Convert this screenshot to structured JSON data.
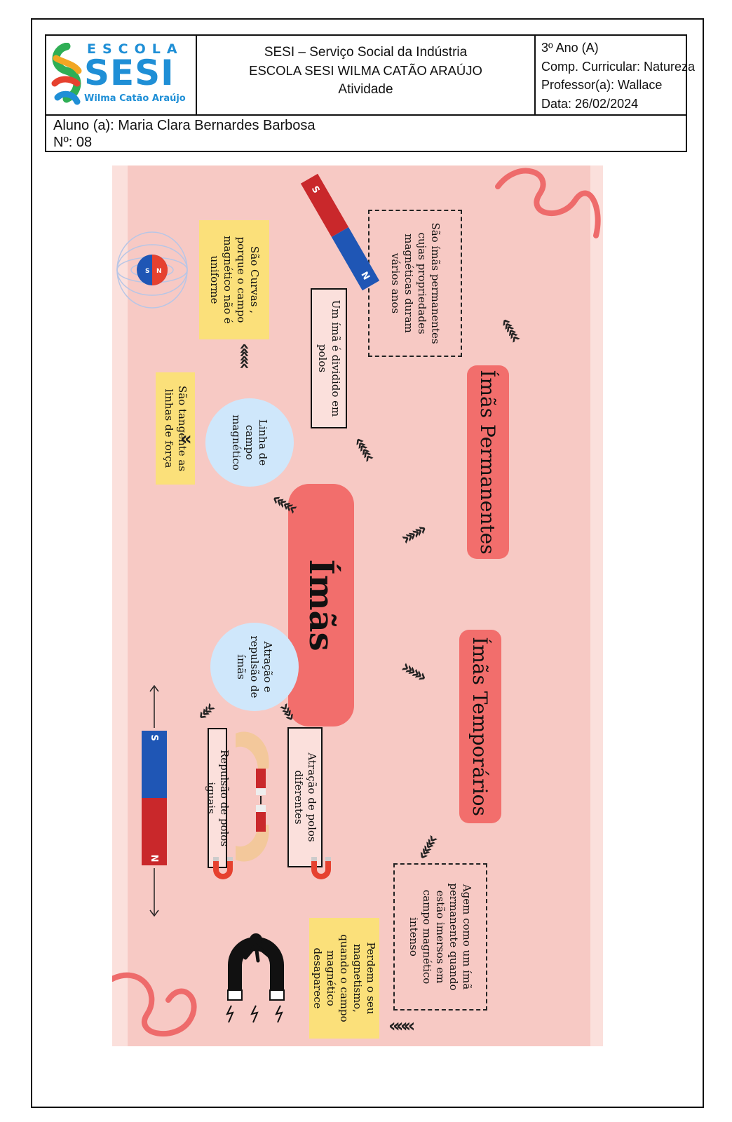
{
  "header": {
    "logo": {
      "escola": "ESCOLA",
      "sesi": "SESI",
      "subtitle": "Wilma Catão Araújo"
    },
    "institution": "SESI – Serviço Social da Indústria",
    "school": "ESCOLA SESI WILMA CATÃO ARAÚJO",
    "document_type": "Atividade",
    "class": "3º Ano (A)",
    "subject": "Comp. Curricular: Natureza",
    "teacher": "Professor(a): Wallace",
    "date": "Data: 26/02/2024",
    "student": "Aluno (a): Maria Clara Bernardes Barbosa",
    "number": "Nº: 08"
  },
  "mindmap": {
    "central": "Ímãs",
    "permanent": {
      "title": "Ímãs Permanentes",
      "definition": "São ímãs permanentes cujas propriedades magnéticas duram vários anos"
    },
    "temporary": {
      "title": "Ímãs Temporários",
      "definition": "Agem como um ímã permanente quando estão imersos em campo magnético intenso",
      "note": "Perdem o seu magnetismo, quando o campo magnético desaparece"
    },
    "poles": "Um ímã é dividido em polos",
    "field_lines": {
      "title": "Linha de campo magnético",
      "tangent": "São tangente as linhas de força",
      "curves": "São Curvas , porque o campo magnético não é uniforme"
    },
    "attraction": {
      "title": "Atração e repulsão de ímãs",
      "attraction": "Atração de polos diferentes",
      "repulsion": "Repulsão de polos iguais"
    },
    "pole_labels": {
      "north": "N",
      "south": "S"
    }
  },
  "colors": {
    "branch": "#f26e6c",
    "background": "#f7c9c4",
    "note": "#fbe07a",
    "circle": "#cfe7fb",
    "magnet_red": "#c9282b",
    "magnet_blue": "#1f56b5",
    "logo_blue": "#1f8fd6"
  }
}
